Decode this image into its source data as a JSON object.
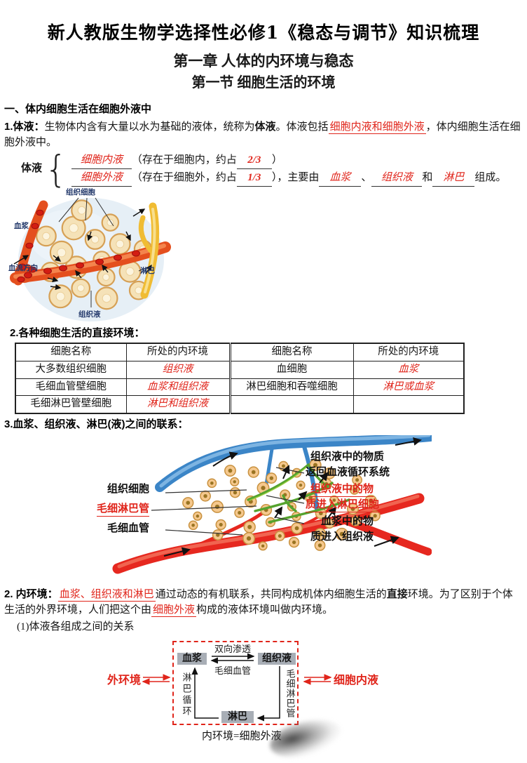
{
  "header": {
    "title": "新人教版生物学选择性必修1《稳态与调节》知识梳理",
    "chapter": "第一章 人体的内环境与稳态",
    "section": "第一节 细胞生活的环境"
  },
  "part1": {
    "heading": "一、体内细胞生活在细胞外液中",
    "item_label": "1.体液：",
    "text_before1": "生物体内含有大量以水为基础的液体，统称为",
    "term_bold": "体液",
    "text_before2": "。体液包括",
    "blank1": "细胞内液和细胞外液",
    "text_after": "，体内细胞生活在细胞外液中。",
    "formula": {
      "label": "体液",
      "brace": "{",
      "row1": {
        "blank": "细胞内液",
        "pre": "（存在于细胞内，约占",
        "frac": "2/3",
        "post": "）"
      },
      "row2": {
        "blank": "细胞外液",
        "pre": "（存在于细胞外，约占",
        "frac": "1/3",
        "post": "），主要由",
        "b1": "血浆",
        "s1": "、",
        "b2": "组织液",
        "s2": "和",
        "b3": "淋巴",
        "end": "组成。"
      }
    }
  },
  "diagram1": {
    "label_cells": "组织细胞",
    "label_plasma": "血浆",
    "label_flow": "血流方向",
    "label_lymph": "淋巴",
    "label_tissue_fluid": "组织液"
  },
  "part2": {
    "heading": "2.各种细胞生活的直接环境：",
    "table": {
      "headers": [
        "细胞名称",
        "所处的内环境",
        "细胞名称",
        "所处的内环境"
      ],
      "rows": [
        [
          "大多数组织细胞",
          "组织液",
          "血细胞",
          "血浆"
        ],
        [
          "毛细血管壁细胞",
          "血浆和组织液",
          "淋巴细胞和吞噬细胞",
          "淋巴或血浆"
        ],
        [
          "毛细淋巴管壁细胞",
          "淋巴和组织液",
          "",
          ""
        ]
      ]
    }
  },
  "part3": {
    "heading": "3.血浆、组织液、淋巴(液)之间的联系："
  },
  "diagram2": {
    "left_label_1": "组织细胞",
    "left_label_2": "毛细淋巴管",
    "left_label_3": "毛细血管",
    "note1_line1": "组织液中的物质",
    "note1_line2": "返回血液循环系统",
    "note2_line1": "组织液中的物",
    "note2_line2": "质进入淋巴细胞",
    "note3_line1": "血浆中的物",
    "note3_line2": "质进入组织液"
  },
  "part4": {
    "label": "2. 内环境：",
    "blank1": "血浆、组织液和淋巴",
    "text1": "通过动态的有机联系，共同构成机体内细胞生活的",
    "em": "直接",
    "text2": "环境。为了区别于个体生活的外界环境，人们把这个由",
    "blank2": "细胞外液",
    "text3": "构成的液体环境叫做内环境。",
    "sub_item": "(1)体液各组成之间的关系"
  },
  "flowchart": {
    "box_plasma": "血浆",
    "box_tissue_fluid": "组织液",
    "box_lymph": "淋巴",
    "arrow_top_label": "双向渗透",
    "arrow_bottom_label": "毛细血管",
    "left_vertical_label": "淋巴循环",
    "right_vertical_label": "毛细淋巴管",
    "outer_left": "外环境",
    "outer_right": "细胞内液",
    "caption": "内环境=细胞外液"
  },
  "colors": {
    "accent_red": "#e0251b",
    "diagram_label_navy": "#23396b"
  }
}
